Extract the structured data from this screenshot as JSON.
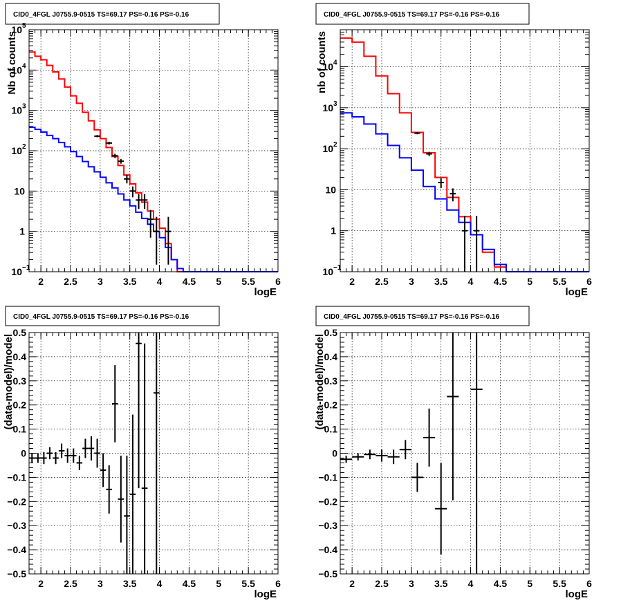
{
  "chart_data": [
    {
      "type": "line",
      "title": "CID0_4FGL J0755.9-0515 TS=69.17 PS=-0.16 PS=-0.16",
      "xlabel": "logE",
      "ylabel": "Nb of counts",
      "xlim": [
        1.8,
        6.0
      ],
      "ylim": [
        0.1,
        100000
      ],
      "yscale": "log",
      "grid": true,
      "xticks": [
        "2",
        "2.5",
        "3",
        "3.5",
        "4",
        "4.5",
        "5",
        "5.5",
        "6"
      ],
      "yticks": [
        "10^-1",
        "1",
        "10",
        "10^2",
        "10^3",
        "10^4",
        "10^5"
      ],
      "bin_edges": [
        1.8,
        1.9,
        2.0,
        2.1,
        2.2,
        2.3,
        2.4,
        2.5,
        2.6,
        2.7,
        2.8,
        2.9,
        3.0,
        3.1,
        3.2,
        3.3,
        3.4,
        3.5,
        3.6,
        3.7,
        3.8,
        3.9,
        4.0,
        4.1,
        4.2,
        4.3,
        4.4,
        4.5,
        4.6,
        4.7,
        4.8,
        4.9,
        5.0,
        5.1,
        5.2,
        5.3,
        5.4,
        5.5,
        5.6,
        5.7,
        5.8,
        5.9,
        6.0
      ],
      "series": [
        {
          "color": "#ff0000",
          "values": [
            28000,
            22000,
            18000,
            13000,
            9000,
            6000,
            3800,
            2300,
            1500,
            900,
            550,
            330,
            200,
            120,
            72,
            43,
            25,
            15,
            9,
            5.3,
            3.2,
            2.0,
            1.2,
            0.5,
            0.2,
            0.1,
            0.1,
            0.1,
            0.1,
            0.1,
            0.1,
            0.1,
            0.1,
            0.1,
            0.1,
            0.1,
            0.1,
            0.1,
            0.1,
            0.1,
            0.1,
            0.1
          ]
        },
        {
          "color": "#0000ff",
          "values": [
            380,
            340,
            290,
            240,
            200,
            160,
            125,
            95,
            72,
            54,
            40,
            30,
            22,
            16,
            12,
            8.5,
            6,
            4.3,
            3.0,
            2.1,
            1.5,
            1.0,
            0.7,
            0.4,
            0.2,
            0.12,
            0.1,
            0.1,
            0.1,
            0.1,
            0.1,
            0.1,
            0.1,
            0.1,
            0.1,
            0.1,
            0.1,
            0.1,
            0.1,
            0.1,
            0.1,
            0.1
          ]
        }
      ],
      "points": [
        {
          "x": 2.95,
          "y": 230,
          "yerr": [
            15,
            15
          ]
        },
        {
          "x": 3.15,
          "y": 155,
          "yerr": [
            12,
            12
          ]
        },
        {
          "x": 3.25,
          "y": 75,
          "yerr": [
            9,
            9
          ]
        },
        {
          "x": 3.35,
          "y": 55,
          "yerr": [
            7,
            7
          ]
        },
        {
          "x": 3.45,
          "y": 20,
          "yerr": [
            4.5,
            5
          ]
        },
        {
          "x": 3.55,
          "y": 10,
          "yerr": [
            3,
            3
          ]
        },
        {
          "x": 3.65,
          "y": 6,
          "yerr": [
            2.4,
            2.4
          ]
        },
        {
          "x": 3.75,
          "y": 6,
          "yerr": [
            2.4,
            2.4
          ]
        },
        {
          "x": 3.85,
          "y": 2,
          "yerr": [
            1.3,
            1.4
          ]
        },
        {
          "x": 3.95,
          "y": 1,
          "yerr": [
            0.85,
            1.3
          ]
        },
        {
          "x": 4.15,
          "y": 1,
          "yerr": [
            0.85,
            1.3
          ]
        }
      ]
    },
    {
      "type": "line",
      "title": "CID0_4FGL J0755.9-0515 TS=69.17 PS=-0.16 PS=-0.16",
      "xlabel": "logE",
      "ylabel": "nb of counts",
      "xlim": [
        1.8,
        6.0
      ],
      "ylim": [
        0.1,
        80000
      ],
      "yscale": "log",
      "grid": true,
      "xticks": [
        "2",
        "2.5",
        "3",
        "3.5",
        "4",
        "4.5",
        "5",
        "5.5",
        "6"
      ],
      "yticks": [
        "10^-1",
        "1",
        "10",
        "10^2",
        "10^3",
        "10^4"
      ],
      "bin_edges": [
        1.8,
        2.0,
        2.2,
        2.4,
        2.6,
        2.8,
        3.0,
        3.2,
        3.4,
        3.6,
        3.8,
        4.0,
        4.2,
        4.4,
        4.6,
        4.8,
        5.0,
        5.2,
        5.4,
        5.6,
        5.8,
        6.0
      ],
      "series": [
        {
          "color": "#ff0000",
          "values": [
            50000,
            40000,
            18000,
            6000,
            2200,
            750,
            250,
            80,
            20,
            6.5,
            2.2,
            0.8,
            0.3,
            0.13,
            0.1,
            0.1,
            0.1,
            0.1,
            0.1,
            0.1,
            0.1
          ]
        },
        {
          "color": "#0000ff",
          "values": [
            750,
            600,
            400,
            230,
            120,
            60,
            30,
            12,
            6,
            3.2,
            1.6,
            0.8,
            0.35,
            0.15,
            0.1,
            0.1,
            0.1,
            0.1,
            0.1,
            0.1,
            0.1
          ]
        }
      ],
      "points": [
        {
          "x": 3.1,
          "y": 240,
          "yerr": [
            15,
            15
          ]
        },
        {
          "x": 3.3,
          "y": 75,
          "yerr": [
            9,
            9
          ]
        },
        {
          "x": 3.5,
          "y": 15,
          "yerr": [
            4,
            4
          ]
        },
        {
          "x": 3.7,
          "y": 8,
          "yerr": [
            2.8,
            2.8
          ]
        },
        {
          "x": 3.9,
          "y": 1,
          "yerr": [
            0.9,
            1.3
          ]
        },
        {
          "x": 4.1,
          "y": 1,
          "yerr": [
            0.9,
            1.3
          ]
        }
      ]
    },
    {
      "type": "scatter",
      "title": "CID0_4FGL J0755.9-0515 TS=69.17 PS=-0.16 PS=-0.16",
      "xlabel": "logE",
      "ylabel": "(data-model)/model",
      "xlim": [
        1.8,
        6.0
      ],
      "ylim": [
        -0.5,
        0.5
      ],
      "grid": true,
      "xticks": [
        "2",
        "2.5",
        "3",
        "3.5",
        "4",
        "4.5",
        "5",
        "5.5",
        "6"
      ],
      "yticks": [
        "−0.5",
        "−0.4",
        "−0.3",
        "−0.2",
        "−0.1",
        "0",
        "0.1",
        "0.2",
        "0.3",
        "0.4",
        "0.5"
      ],
      "points": [
        {
          "x": 1.85,
          "y": -0.02,
          "xerr": 0.05,
          "yerr": 0.02
        },
        {
          "x": 1.95,
          "y": -0.02,
          "xerr": 0.05,
          "yerr": 0.02
        },
        {
          "x": 2.05,
          "y": -0.02,
          "xerr": 0.05,
          "yerr": 0.025
        },
        {
          "x": 2.15,
          "y": 0.0,
          "xerr": 0.05,
          "yerr": 0.025
        },
        {
          "x": 2.25,
          "y": -0.02,
          "xerr": 0.05,
          "yerr": 0.025
        },
        {
          "x": 2.35,
          "y": 0.01,
          "xerr": 0.05,
          "yerr": 0.03
        },
        {
          "x": 2.45,
          "y": -0.01,
          "xerr": 0.05,
          "yerr": 0.03
        },
        {
          "x": 2.55,
          "y": -0.01,
          "xerr": 0.05,
          "yerr": 0.03
        },
        {
          "x": 2.65,
          "y": -0.04,
          "xerr": 0.05,
          "yerr": 0.03
        },
        {
          "x": 2.75,
          "y": 0.02,
          "xerr": 0.05,
          "yerr": 0.04
        },
        {
          "x": 2.85,
          "y": 0.02,
          "xerr": 0.05,
          "yerr": 0.05
        },
        {
          "x": 2.95,
          "y": 0.0,
          "xerr": 0.05,
          "yerr": 0.06
        },
        {
          "x": 3.05,
          "y": -0.07,
          "xerr": 0.05,
          "yerr": 0.07
        },
        {
          "x": 3.15,
          "y": -0.15,
          "xerr": 0.05,
          "yerr": 0.1
        },
        {
          "x": 3.25,
          "y": 0.205,
          "xerr": 0.05,
          "yerr": 0.16
        },
        {
          "x": 3.35,
          "y": -0.19,
          "xerr": 0.05,
          "yerr": 0.18
        },
        {
          "x": 3.45,
          "y": -0.26,
          "xerr": 0.05,
          "yerr": 0.25
        },
        {
          "x": 3.55,
          "y": -0.17,
          "xerr": 0.05,
          "yerr": 0.33
        },
        {
          "x": 3.65,
          "y": 0.455,
          "xerr": 0.05,
          "yerr": 0.6
        },
        {
          "x": 3.75,
          "y": -0.145,
          "xerr": 0.05,
          "yerr": 0.6
        },
        {
          "x": 3.95,
          "y": 0.25,
          "xerr": 0.05,
          "yerr": 0.85
        }
      ]
    },
    {
      "type": "scatter",
      "title": "CID0_4FGL J0755.9-0515 TS=69.17 PS=-0.16 PS=-0.16",
      "xlabel": "logE",
      "ylabel": "(data-model)/model",
      "xlim": [
        1.8,
        6.0
      ],
      "ylim": [
        -0.5,
        0.5
      ],
      "grid": true,
      "xticks": [
        "2",
        "2.5",
        "3",
        "3.5",
        "4",
        "4.5",
        "5",
        "5.5",
        "6"
      ],
      "yticks": [
        "−0.5",
        "−0.4",
        "−0.3",
        "−0.2",
        "−0.1",
        "0",
        "0.1",
        "0.2",
        "0.3",
        "0.4",
        "0.5"
      ],
      "points": [
        {
          "x": 1.9,
          "y": -0.025,
          "xerr": 0.1,
          "yerr": 0.015
        },
        {
          "x": 2.1,
          "y": -0.015,
          "xerr": 0.1,
          "yerr": 0.015
        },
        {
          "x": 2.3,
          "y": -0.005,
          "xerr": 0.1,
          "yerr": 0.02
        },
        {
          "x": 2.5,
          "y": -0.01,
          "xerr": 0.1,
          "yerr": 0.025
        },
        {
          "x": 2.7,
          "y": -0.015,
          "xerr": 0.1,
          "yerr": 0.03
        },
        {
          "x": 2.9,
          "y": 0.015,
          "xerr": 0.1,
          "yerr": 0.04
        },
        {
          "x": 3.1,
          "y": -0.1,
          "xerr": 0.1,
          "yerr": 0.06
        },
        {
          "x": 3.3,
          "y": 0.065,
          "xerr": 0.1,
          "yerr": 0.12
        },
        {
          "x": 3.5,
          "y": -0.23,
          "xerr": 0.1,
          "yerr": 0.19
        },
        {
          "x": 3.7,
          "y": 0.235,
          "xerr": 0.1,
          "yerr": 0.43
        },
        {
          "x": 4.1,
          "y": 0.265,
          "xerr": 0.1,
          "yerr": 0.9
        }
      ]
    }
  ]
}
